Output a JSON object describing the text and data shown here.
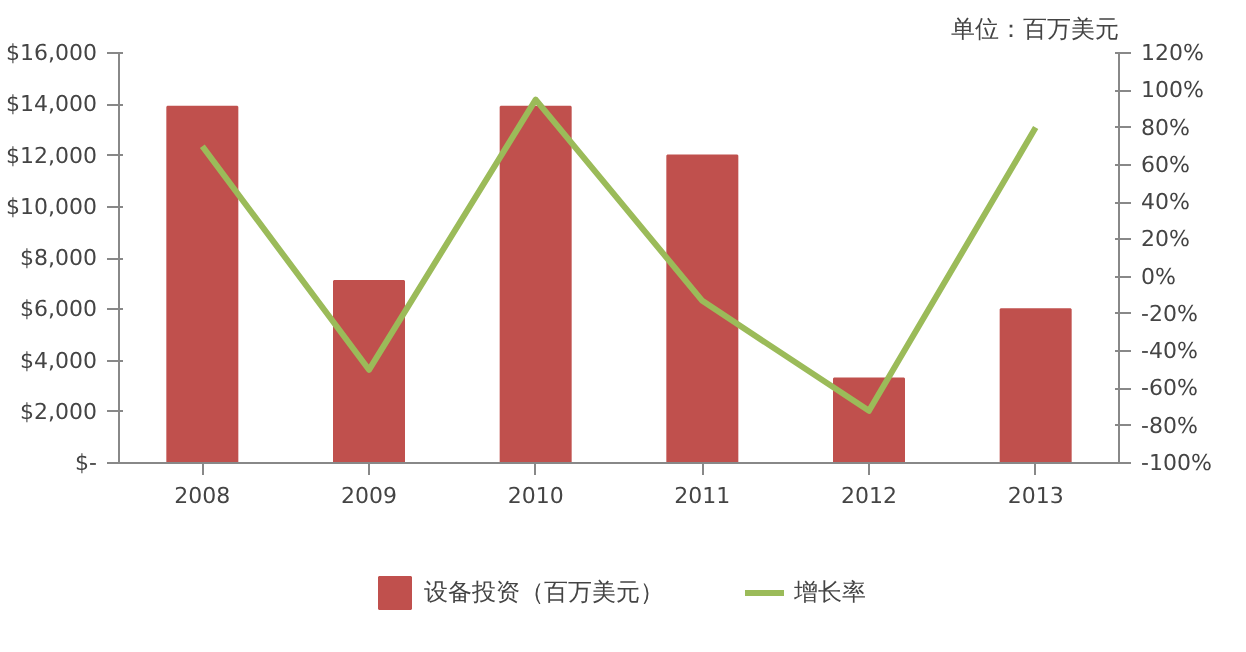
{
  "chart_data": {
    "type": "bar",
    "annotations": [
      "单位：百万美元"
    ],
    "categories": [
      "2008",
      "2009",
      "2010",
      "2011",
      "2012",
      "2013"
    ],
    "series": [
      {
        "name": "设备投资（百万美元）",
        "color": "#c0504d",
        "values": [
          13900,
          7100,
          13900,
          12000,
          3300,
          6000
        ]
      },
      {
        "name": "增长率",
        "type": "line",
        "axis": "y2",
        "color": "#9bbb59",
        "values": [
          70,
          -50,
          95,
          -13,
          -72,
          80
        ]
      }
    ],
    "ylim": [
      0,
      16000
    ],
    "yticks": [
      {
        "value": 0,
        "label": "$-"
      },
      {
        "value": 2000,
        "label": "$2,000"
      },
      {
        "value": 4000,
        "label": "$4,000"
      },
      {
        "value": 6000,
        "label": "$6,000"
      },
      {
        "value": 8000,
        "label": "$8,000"
      },
      {
        "value": 10000,
        "label": "$10,000"
      },
      {
        "value": 12000,
        "label": "$12,000"
      },
      {
        "value": 14000,
        "label": "$14,000"
      },
      {
        "value": 16000,
        "label": "$16,000"
      }
    ],
    "y2lim": [
      -100,
      120
    ],
    "y2ticks": [
      {
        "value": -100,
        "label": "-100%"
      },
      {
        "value": -80,
        "label": "-80%"
      },
      {
        "value": -60,
        "label": "-60%"
      },
      {
        "value": -40,
        "label": "-40%"
      },
      {
        "value": -20,
        "label": "-20%"
      },
      {
        "value": 0,
        "label": "0%"
      },
      {
        "value": 20,
        "label": "20%"
      },
      {
        "value": 40,
        "label": "40%"
      },
      {
        "value": 60,
        "label": "60%"
      },
      {
        "value": 80,
        "label": "80%"
      },
      {
        "value": 100,
        "label": "100%"
      },
      {
        "value": 120,
        "label": "120%"
      }
    ],
    "grid": false,
    "legend": "bottom",
    "marker": "none",
    "line_style": "solid"
  }
}
